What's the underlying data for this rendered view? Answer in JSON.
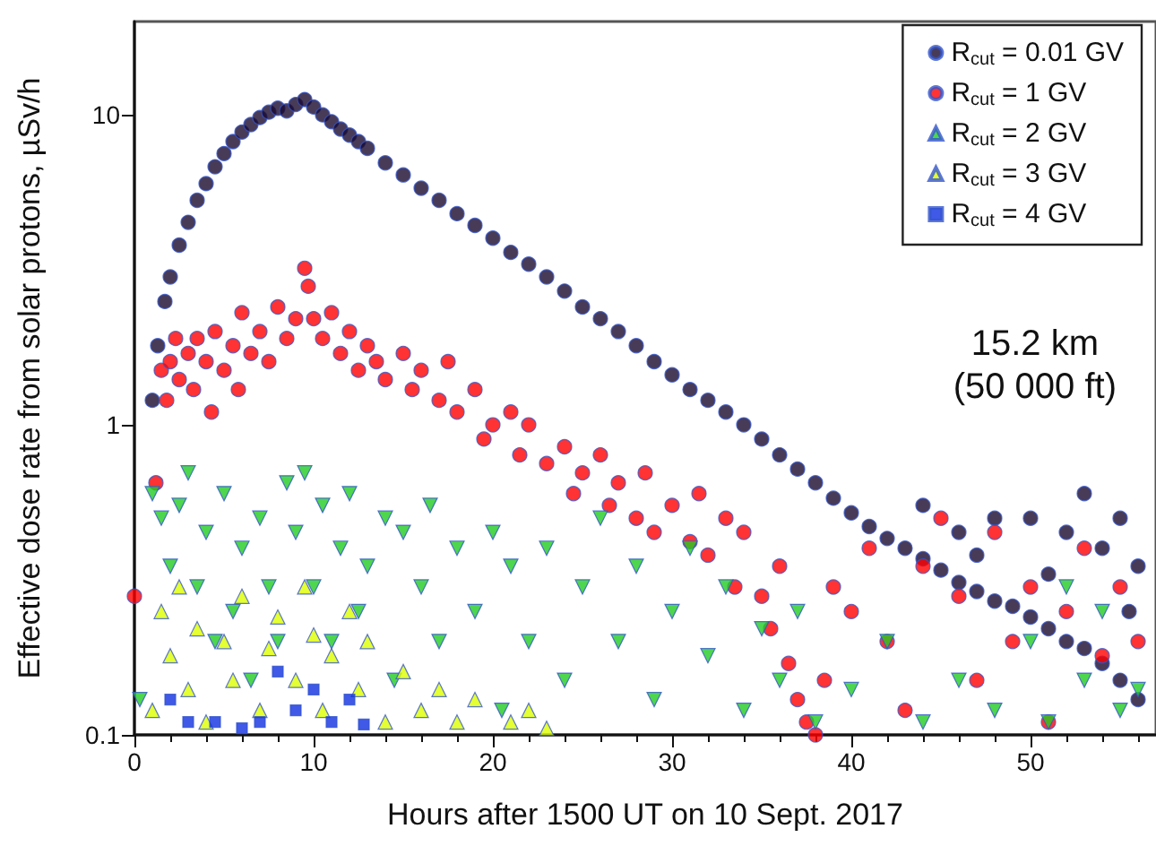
{
  "chart_data": {
    "type": "scatter",
    "xlabel": "Hours after 1500 UT on 10 Sept. 2017",
    "ylabel": "Effective dose rate from solar protons, µSv/h",
    "annotations": [
      "15.2 km\n(50 000 ft)"
    ],
    "xlim": [
      0,
      57
    ],
    "xticks": [
      0,
      10,
      20,
      30,
      40,
      50
    ],
    "ylim": [
      0.1,
      20
    ],
    "yticks": [
      0.1,
      1,
      10
    ],
    "log": "y",
    "grid": false,
    "legend": "top right",
    "series": [
      {
        "name": "R$_{cut}$ = 0.01 GV",
        "color": "#1a0a2e",
        "marker": "circle",
        "x": [
          1,
          1.3,
          1.7,
          2,
          2.5,
          3,
          3.5,
          4,
          4.5,
          5,
          5.5,
          6,
          6.5,
          7,
          7.5,
          8,
          8.5,
          9,
          9.5,
          10,
          10.5,
          11,
          11.5,
          12,
          12.5,
          13,
          14,
          15,
          16,
          17,
          18,
          19,
          20,
          21,
          22,
          23,
          24,
          25,
          26,
          27,
          28,
          29,
          30,
          31,
          32,
          33,
          34,
          35,
          36,
          37,
          38,
          39,
          40,
          41,
          42,
          43,
          44,
          45,
          46,
          47,
          48,
          49,
          50,
          51,
          52,
          53,
          54,
          55,
          56,
          44,
          46,
          48,
          50,
          52,
          53,
          54,
          55,
          56,
          47,
          51,
          55.5
        ],
        "values": [
          1.2,
          1.8,
          2.5,
          3,
          3.8,
          4.5,
          5.3,
          6,
          6.8,
          7.5,
          8.2,
          8.8,
          9.3,
          9.8,
          10.2,
          10.5,
          10.3,
          10.8,
          11.2,
          10.6,
          10,
          9.5,
          9,
          8.6,
          8.2,
          7.8,
          7,
          6.4,
          5.8,
          5.3,
          4.8,
          4.4,
          4,
          3.6,
          3.3,
          3,
          2.7,
          2.4,
          2.2,
          2,
          1.8,
          1.6,
          1.45,
          1.3,
          1.2,
          1.1,
          1,
          0.9,
          0.8,
          0.72,
          0.65,
          0.58,
          0.52,
          0.47,
          0.43,
          0.4,
          0.37,
          0.34,
          0.31,
          0.29,
          0.27,
          0.26,
          0.24,
          0.22,
          0.2,
          0.19,
          0.17,
          0.15,
          0.13,
          0.55,
          0.45,
          0.5,
          0.5,
          0.45,
          0.6,
          0.4,
          0.5,
          0.35,
          0.38,
          0.33,
          0.25
        ]
      },
      {
        "name": "R$_{cut}$ = 1 GV",
        "color": "#ff0000",
        "marker": "circle",
        "x": [
          0,
          1.2,
          1.5,
          1.8,
          2,
          2.3,
          2.5,
          3,
          3.3,
          3.5,
          4,
          4.3,
          4.5,
          5,
          5.5,
          5.8,
          6,
          6.5,
          7,
          7.5,
          8,
          8.5,
          9,
          9.5,
          9.7,
          10,
          10.5,
          11,
          11.5,
          12,
          12.5,
          13,
          13.5,
          14,
          15,
          15.5,
          16,
          17,
          17.5,
          18,
          19,
          19.5,
          20,
          21,
          21.5,
          22,
          23,
          24,
          24.5,
          25,
          26,
          26.5,
          27,
          28,
          28.5,
          29,
          30,
          31,
          31.5,
          32,
          33,
          33.5,
          34,
          35,
          35.5,
          36,
          36.5,
          37,
          37.5,
          38,
          38.5,
          39,
          40,
          41,
          42,
          43,
          44,
          45,
          46,
          47,
          48,
          49,
          50,
          51,
          52,
          53,
          54,
          55,
          56
        ],
        "values": [
          0.28,
          0.65,
          1.5,
          1.2,
          1.6,
          1.9,
          1.4,
          1.7,
          1.3,
          1.9,
          1.6,
          1.1,
          2,
          1.5,
          1.8,
          1.3,
          2.3,
          1.7,
          2,
          1.6,
          2.4,
          1.9,
          2.2,
          3.2,
          2.8,
          2.2,
          1.9,
          2.3,
          1.7,
          2,
          1.5,
          1.8,
          1.6,
          1.4,
          1.7,
          1.3,
          1.5,
          1.2,
          1.6,
          1.1,
          1.3,
          0.9,
          1,
          1.1,
          0.8,
          1,
          0.75,
          0.85,
          0.6,
          0.7,
          0.8,
          0.55,
          0.65,
          0.5,
          0.7,
          0.45,
          0.55,
          0.42,
          0.6,
          0.38,
          0.5,
          0.3,
          0.45,
          0.28,
          0.22,
          0.35,
          0.17,
          0.13,
          0.11,
          0.1,
          0.15,
          0.3,
          0.25,
          0.4,
          0.2,
          0.12,
          0.35,
          0.5,
          0.28,
          0.15,
          0.45,
          0.2,
          0.3,
          0.11,
          0.25,
          0.4,
          0.18,
          0.3,
          0.2
        ]
      },
      {
        "name": "R$_{cut}$ = 2 GV",
        "color": "#22cc22",
        "marker": "triangle-down",
        "x": [
          0.3,
          1,
          1.5,
          2,
          2.5,
          3,
          3.5,
          4,
          4.5,
          5,
          5.5,
          6,
          6.5,
          7,
          7.5,
          8,
          8.5,
          9,
          9.5,
          10,
          10.5,
          11,
          11.5,
          12,
          12.5,
          13,
          14,
          14.5,
          15,
          16,
          16.5,
          17,
          18,
          19,
          20,
          20.5,
          21,
          22,
          23,
          24,
          25,
          26,
          27,
          28,
          29,
          30,
          31,
          32,
          33,
          34,
          35,
          36,
          37,
          38,
          40,
          42,
          44,
          46,
          48,
          50,
          51,
          52,
          53,
          54,
          55,
          56
        ],
        "values": [
          0.13,
          0.6,
          0.5,
          0.35,
          0.55,
          0.7,
          0.3,
          0.45,
          0.2,
          0.6,
          0.25,
          0.4,
          0.15,
          0.5,
          0.3,
          0.2,
          0.65,
          0.45,
          0.7,
          0.3,
          0.55,
          0.2,
          0.4,
          0.6,
          0.25,
          0.35,
          0.5,
          0.15,
          0.45,
          0.3,
          0.55,
          0.2,
          0.4,
          0.25,
          0.45,
          0.12,
          0.35,
          0.2,
          0.4,
          0.15,
          0.3,
          0.5,
          0.2,
          0.35,
          0.13,
          0.25,
          0.4,
          0.18,
          0.3,
          0.12,
          0.22,
          0.15,
          0.25,
          0.11,
          0.14,
          0.2,
          0.11,
          0.15,
          0.12,
          0.2,
          0.11,
          0.3,
          0.15,
          0.25,
          0.12,
          0.14
        ]
      },
      {
        "name": "R$_{cut}$ = 3 GV",
        "color": "#ddff00",
        "marker": "triangle",
        "x": [
          1,
          1.5,
          2,
          2.5,
          3,
          3.5,
          4,
          5,
          5.5,
          6,
          7,
          7.5,
          8,
          9,
          9.5,
          10,
          10.5,
          11,
          12,
          12.5,
          13,
          14,
          15,
          16,
          17,
          18,
          19,
          21,
          22,
          23
        ],
        "values": [
          0.12,
          0.25,
          0.18,
          0.3,
          0.14,
          0.22,
          0.11,
          0.2,
          0.15,
          0.28,
          0.12,
          0.19,
          0.24,
          0.15,
          0.3,
          0.21,
          0.12,
          0.18,
          0.25,
          0.14,
          0.2,
          0.11,
          0.16,
          0.12,
          0.14,
          0.11,
          0.13,
          0.11,
          0.12,
          0.105
        ]
      },
      {
        "name": "R$_{cut}$ = 4 GV",
        "color": "#1030e0",
        "marker": "square",
        "x": [
          2,
          3,
          4.5,
          6,
          7,
          8,
          9,
          10,
          11,
          12,
          12.8
        ],
        "values": [
          0.13,
          0.11,
          0.11,
          0.105,
          0.11,
          0.16,
          0.12,
          0.14,
          0.11,
          0.13,
          0.108
        ]
      }
    ]
  }
}
